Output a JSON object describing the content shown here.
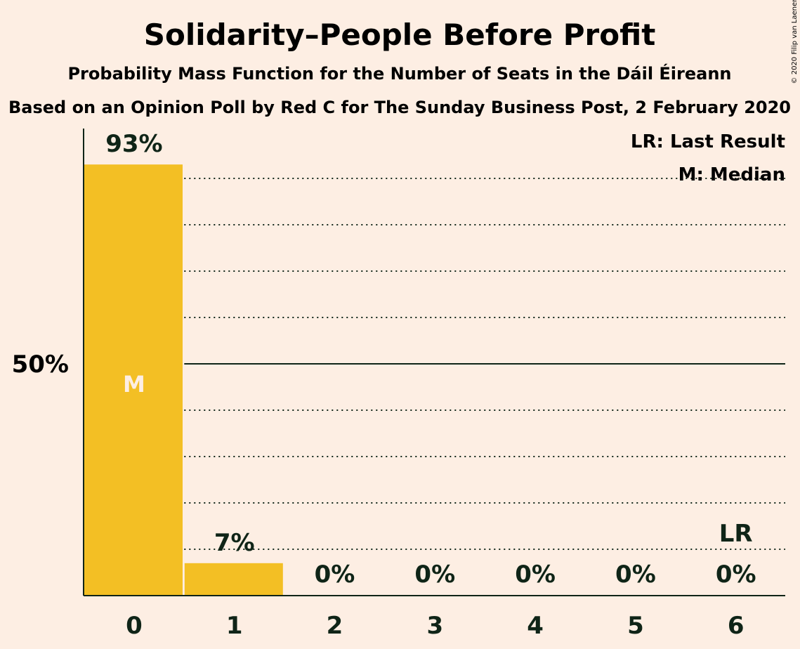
{
  "title": "Solidarity–People Before Profit",
  "subtitle1": "Probability Mass Function for the Number of Seats in the Dáil Éireann",
  "subtitle2": "Based on an Opinion Poll by Red C for The Sunday Business Post, 2 February 2020",
  "copyright": "© 2020 Filip van Laenen",
  "legend": {
    "last_result": "LR: Last Result",
    "median": "M: Median"
  },
  "colors": {
    "background": "#FDEEE3",
    "bar": "#F3BF24",
    "text": "#0F2417",
    "median_text": "#FDEEE3"
  },
  "chart_data": {
    "type": "bar",
    "categories": [
      "0",
      "1",
      "2",
      "3",
      "4",
      "5",
      "6"
    ],
    "values": [
      93,
      7,
      0,
      0,
      0,
      0,
      0
    ],
    "value_labels": [
      "93%",
      "7%",
      "0%",
      "0%",
      "0%",
      "0%",
      "0%"
    ],
    "ylim": [
      0,
      100
    ],
    "y_tick": {
      "value": 50,
      "label": "50%"
    },
    "gridlines": [
      10,
      20,
      30,
      40,
      60,
      70,
      80,
      90
    ],
    "median_seat": 0,
    "median_label": "M",
    "last_result_seat": 6,
    "last_result_label": "LR",
    "grid": true,
    "legend_position": "top-right"
  }
}
